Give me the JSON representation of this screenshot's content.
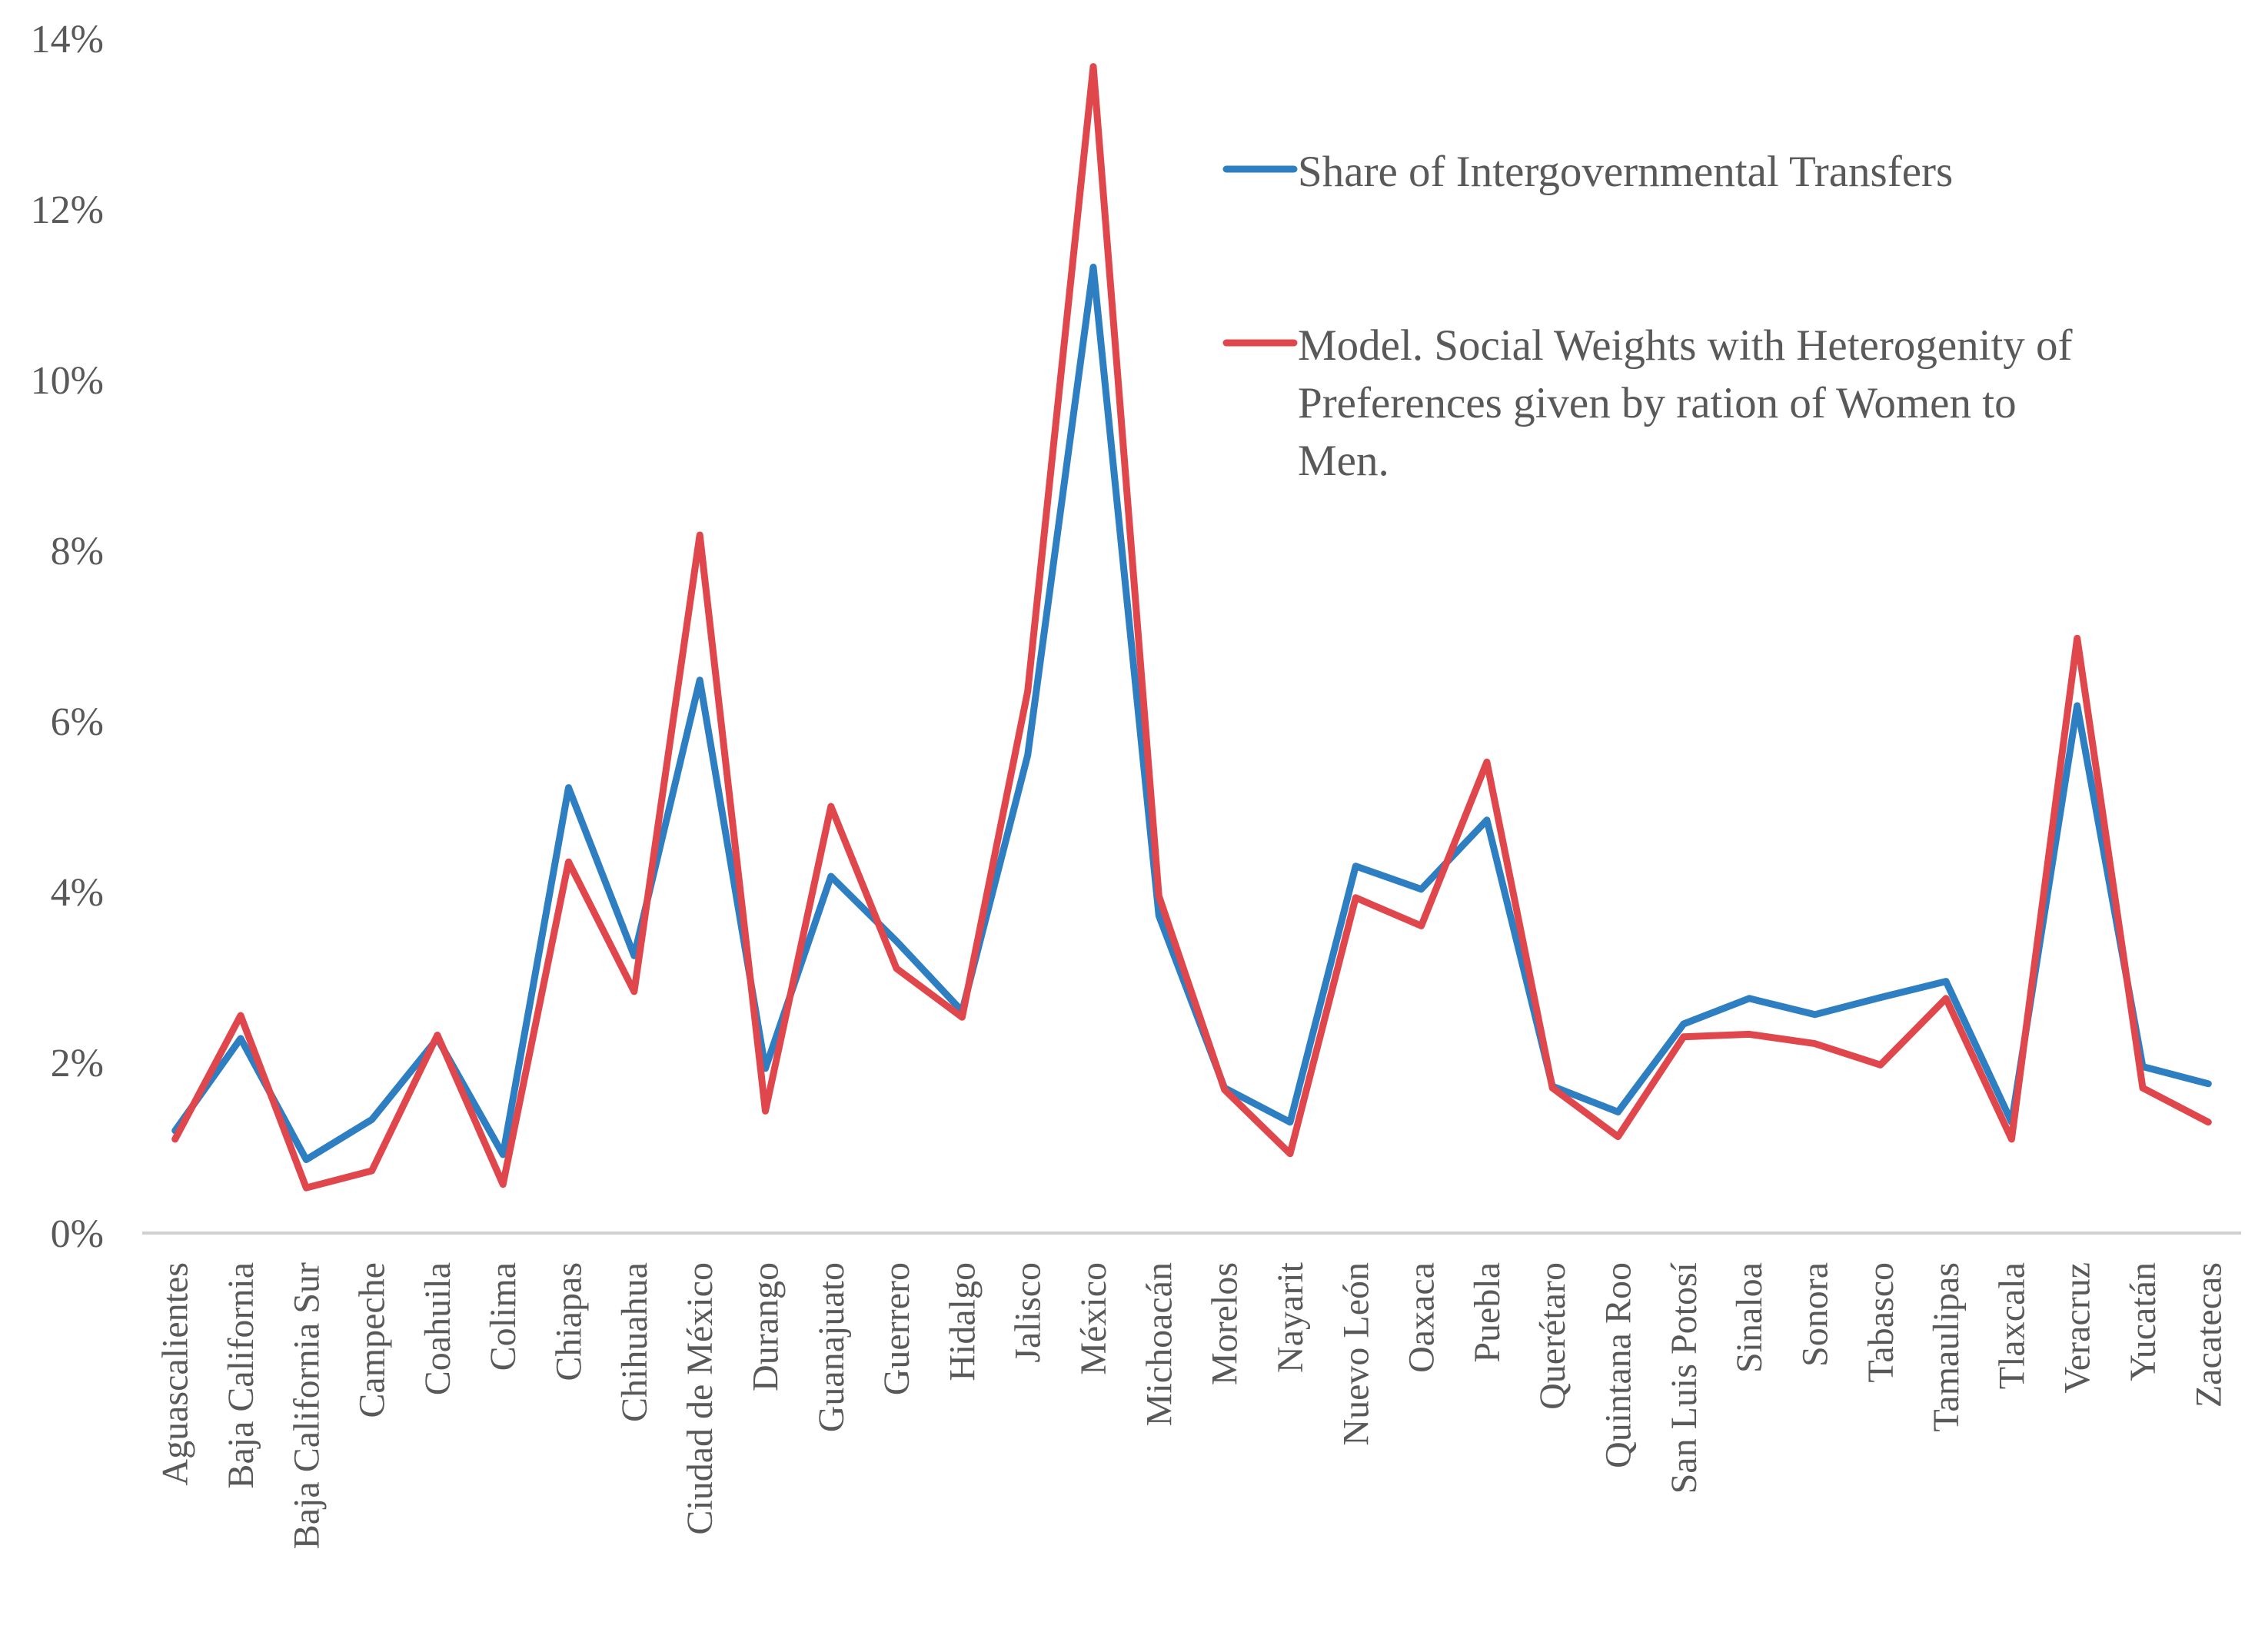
{
  "chart_data": {
    "type": "line",
    "title": "",
    "xlabel": "",
    "ylabel": "",
    "ylim": [
      0,
      0.14
    ],
    "yticks": [
      {
        "value": 0.0,
        "label": "0%"
      },
      {
        "value": 0.02,
        "label": "2%"
      },
      {
        "value": 0.04,
        "label": "4%"
      },
      {
        "value": 0.06,
        "label": "6%"
      },
      {
        "value": 0.08,
        "label": "8%"
      },
      {
        "value": 0.1,
        "label": "10%"
      },
      {
        "value": 0.12,
        "label": "12%"
      },
      {
        "value": 0.14,
        "label": "14%"
      }
    ],
    "grid": false,
    "legend_position": "top-right",
    "categories": [
      "Aguascalientes",
      "Baja California",
      "Baja California Sur",
      "Campeche",
      "Coahuila",
      "Colima",
      "Chiapas",
      "Chihuahua",
      "Ciudad de México",
      "Durango",
      "Guanajuato",
      "Guerrero",
      "Hidalgo",
      "Jalisco",
      "México",
      "Michoacán",
      "Morelos",
      "Nayarit",
      "Nuevo León",
      "Oaxaca",
      "Puebla",
      "Querétaro",
      "Quintana Roo",
      "San Luis Potosí",
      "Sinaloa",
      "Sonora",
      "Tabasco",
      "Tamaulipas",
      "Tlaxcala",
      "Veracruz",
      "Yucatán",
      "Zacatecas"
    ],
    "series": [
      {
        "name": "Share of Intergovernmental Transfers",
        "color": "#2E7EC2",
        "values": [
          0.012,
          0.0228,
          0.0086,
          0.0133,
          0.0228,
          0.0092,
          0.0522,
          0.0325,
          0.0648,
          0.0193,
          0.0418,
          0.0342,
          0.026,
          0.056,
          0.1132,
          0.0372,
          0.017,
          0.013,
          0.043,
          0.0403,
          0.0484,
          0.0172,
          0.0142,
          0.0245,
          0.0275,
          0.0256,
          0.0276,
          0.0295,
          0.013,
          0.0618,
          0.0195,
          0.0175
        ]
      },
      {
        "name": "Model. Social Weights with Heterogenity of Preferences given by ration of Women to Men.",
        "color": "#E0474C",
        "values": [
          0.011,
          0.0255,
          0.0053,
          0.0073,
          0.0232,
          0.0057,
          0.0435,
          0.0283,
          0.0818,
          0.0143,
          0.05,
          0.031,
          0.0253,
          0.0635,
          0.1367,
          0.0395,
          0.0168,
          0.0093,
          0.0393,
          0.036,
          0.0552,
          0.017,
          0.0113,
          0.023,
          0.0233,
          0.0222,
          0.0197,
          0.0275,
          0.011,
          0.0697,
          0.017,
          0.013
        ]
      }
    ],
    "legend": [
      {
        "series": 0,
        "lines": [
          "Share of Intergovernmental Transfers"
        ]
      },
      {
        "series": 1,
        "lines": [
          "Model. Social Weights with Heterogenity of",
          "Preferences given by ration of Women to",
          "Men."
        ]
      }
    ]
  }
}
